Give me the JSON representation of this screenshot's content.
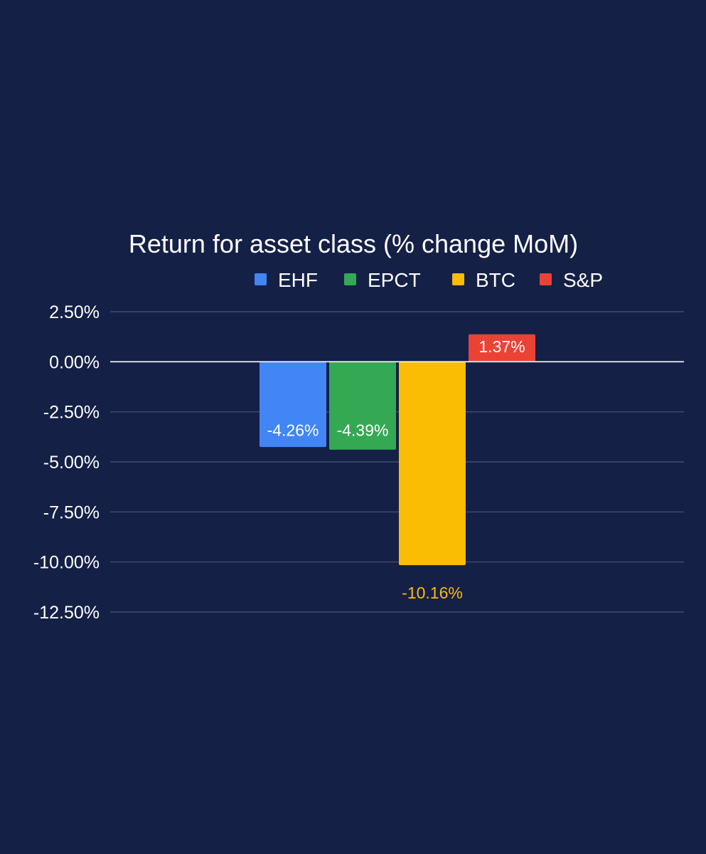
{
  "colors": {
    "background": "#142046",
    "text": "#ffffff",
    "grid": "#4a5577",
    "zero_line": "#ffffff"
  },
  "chart_data": {
    "type": "bar",
    "title": "Return for asset class (% change MoM)",
    "xlabel": "",
    "ylabel": "",
    "ylim": [
      -12.5,
      2.5
    ],
    "yticks": [
      2.5,
      0,
      -2.5,
      -5,
      -7.5,
      -10,
      -12.5
    ],
    "ytick_labels": [
      "2.50%",
      "0.00%",
      "-2.50%",
      "-5.00%",
      "-7.50%",
      "-10.00%",
      "-12.50%"
    ],
    "grid": true,
    "legend_position": "top",
    "categories": [
      ""
    ],
    "series": [
      {
        "name": "EHF",
        "values": [
          -4.26
        ],
        "label": "-4.26%",
        "color": "#4285f4",
        "label_style": "inside"
      },
      {
        "name": "EPCT",
        "values": [
          -4.39
        ],
        "label": "-4.39%",
        "color": "#34a853",
        "label_style": "inside"
      },
      {
        "name": "BTC",
        "values": [
          -10.16
        ],
        "label": "-10.16%",
        "color": "#fbbc04",
        "label_style": "outside"
      },
      {
        "name": "S&P",
        "values": [
          1.37
        ],
        "label": "1.37%",
        "color": "#ea4335",
        "label_style": "box"
      }
    ]
  }
}
